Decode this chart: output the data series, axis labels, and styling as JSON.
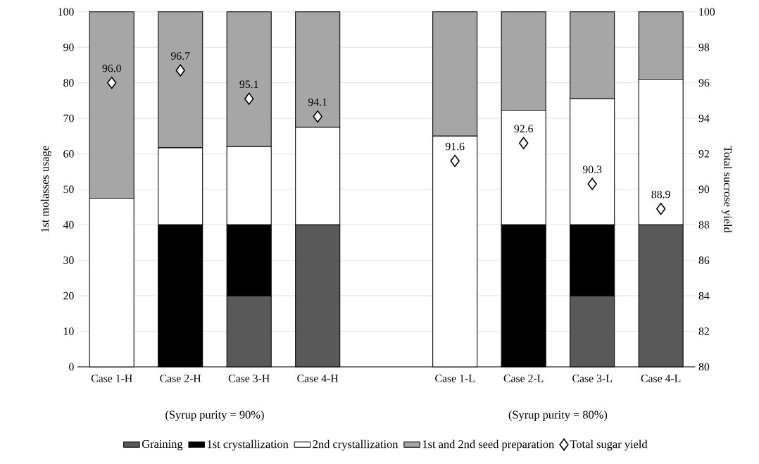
{
  "chart_data": {
    "type": "bar",
    "stacked": true,
    "categories": [
      "Case 1-H",
      "Case 2-H",
      "Case 3-H",
      "Case 4-H",
      null,
      "Case 1-L",
      "Case 2-L",
      "Case 3-L",
      "Case 4-L"
    ],
    "series": [
      {
        "name": "Graining",
        "color": "#595959",
        "values": [
          0,
          0,
          20,
          40,
          null,
          0,
          0,
          20,
          40
        ]
      },
      {
        "name": "1st crystallization",
        "color": "#000000",
        "values": [
          0,
          40,
          20,
          0,
          null,
          0,
          40,
          20,
          0
        ]
      },
      {
        "name": "2nd crystallization",
        "color": "#ffffff",
        "values": [
          47.5,
          21.7,
          22,
          27.5,
          null,
          65,
          32.3,
          35.5,
          41
        ]
      },
      {
        "name": "1st and 2nd seed preparation",
        "color": "#a6a6a6",
        "values": [
          52.5,
          38.3,
          38,
          32.5,
          null,
          35,
          27.7,
          24.5,
          19
        ]
      },
      {
        "name": "Total sugar yield",
        "type": "scatter",
        "axis": "y2",
        "marker": "diamond",
        "color": "#ffffff",
        "values": [
          96.0,
          96.7,
          95.1,
          94.1,
          null,
          91.6,
          92.6,
          90.3,
          88.9
        ],
        "value_labels": [
          "96.0",
          "96.7",
          "95.1",
          "94.1",
          null,
          "91.6",
          "92.6",
          "90.3",
          "88.9"
        ]
      }
    ],
    "ylabel": "1st molasses usage",
    "y2label": "Total sucrose yield",
    "ylim": [
      0,
      100
    ],
    "yticks": [
      0,
      10,
      20,
      30,
      40,
      50,
      60,
      70,
      80,
      90,
      100
    ],
    "y2lim": [
      80,
      100
    ],
    "y2ticks": [
      80,
      82,
      84,
      86,
      88,
      90,
      92,
      94,
      96,
      98,
      100
    ],
    "annotations": [
      "(Syrup purity = 90%)",
      "(Syrup purity = 80%)"
    ],
    "grid": "y",
    "legend": "bottom"
  }
}
